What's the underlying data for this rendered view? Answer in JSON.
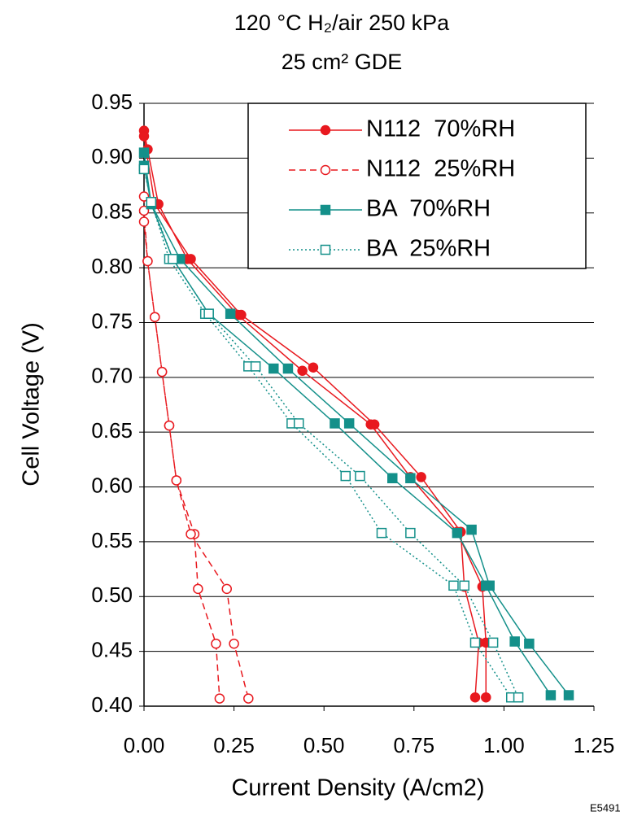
{
  "chart_data": {
    "type": "line",
    "title": [
      "120 °C  H₂/air  250 kPa",
      "25 cm² GDE"
    ],
    "x_label": "Current Density (A/cm2)",
    "y_label": "Cell Voltage (V)",
    "figure_id": "E5491",
    "xlim": [
      0,
      1.25
    ],
    "ylim": [
      0.4,
      0.95
    ],
    "xticks": [
      {
        "value": 0,
        "label": "0.00"
      },
      {
        "value": 0.25,
        "label": "0.25"
      },
      {
        "value": 0.5,
        "label": "0.50"
      },
      {
        "value": 0.75,
        "label": "0.75"
      },
      {
        "value": 1,
        "label": "1.00"
      },
      {
        "value": 1.25,
        "label": "1.25"
      }
    ],
    "yticks": [
      {
        "value": 0.4,
        "label": "0.40"
      },
      {
        "value": 0.45,
        "label": "0.45"
      },
      {
        "value": 0.5,
        "label": "0.50"
      },
      {
        "value": 0.55,
        "label": "0.55"
      },
      {
        "value": 0.6,
        "label": "0.60"
      },
      {
        "value": 0.65,
        "label": "0.65"
      },
      {
        "value": 0.7,
        "label": "0.70"
      },
      {
        "value": 0.75,
        "label": "0.75"
      },
      {
        "value": 0.8,
        "label": "0.80"
      },
      {
        "value": 0.85,
        "label": "0.85"
      },
      {
        "value": 0.9,
        "label": "0.90"
      },
      {
        "value": 0.95,
        "label": "0.95"
      }
    ],
    "grid": true,
    "legend": "top-right",
    "series": [
      {
        "name": "N112  70%RH",
        "color": "#e8191f",
        "marker": "circle",
        "filled": true,
        "dash": "solid",
        "x": [
          0,
          0.01,
          0.04,
          0.12,
          0.26,
          0.44,
          0.63,
          0.74,
          0.87,
          0.94,
          0.95,
          0.95,
          null,
          0,
          0.03,
          0.13,
          0.27,
          0.47,
          0.64,
          0.77,
          0.88,
          0.89,
          0.93,
          0.92
        ],
        "values": [
          0.925,
          0.908,
          0.858,
          0.808,
          0.757,
          0.706,
          0.657,
          0.609,
          0.559,
          0.509,
          0.458,
          0.408,
          null,
          0.92,
          0.858,
          0.808,
          0.757,
          0.709,
          0.657,
          0.609,
          0.559,
          0.509,
          0.458,
          0.408
        ]
      },
      {
        "name": "N112  25%RH",
        "color": "#e8191f",
        "marker": "circle",
        "filled": false,
        "dash": "dashed",
        "x": [
          0,
          0,
          0.01,
          0.03,
          0.05,
          0.07,
          0.09,
          0.14,
          0.15,
          0.2,
          0.21,
          null,
          0,
          0.01,
          0.03,
          0.05,
          0.07,
          0.09,
          0.13,
          0.23,
          0.25,
          0.29
        ],
        "values": [
          0.865,
          0.842,
          0.806,
          0.755,
          0.705,
          0.656,
          0.606,
          0.557,
          0.507,
          0.457,
          0.407,
          null,
          0.852,
          0.806,
          0.755,
          0.705,
          0.656,
          0.606,
          0.557,
          0.507,
          0.457,
          0.407
        ]
      },
      {
        "name": "BA  70%RH",
        "color": "#14908a",
        "marker": "square",
        "filled": true,
        "dash": "solid",
        "x": [
          0,
          0.02,
          0.08,
          0.18,
          0.36,
          0.53,
          0.69,
          0.87,
          0.95,
          1.03,
          1.13,
          null,
          0,
          0.02,
          0.1,
          0.24,
          0.4,
          0.57,
          0.74,
          0.91,
          0.96,
          1.07,
          1.18
        ],
        "values": [
          0.905,
          0.858,
          0.808,
          0.758,
          0.708,
          0.658,
          0.608,
          0.558,
          0.51,
          0.459,
          0.41,
          null,
          0.893,
          0.858,
          0.808,
          0.758,
          0.708,
          0.658,
          0.608,
          0.561,
          0.51,
          0.457,
          0.41
        ]
      },
      {
        "name": "BA  25%RH",
        "color": "#14908a",
        "marker": "square",
        "filled": false,
        "dash": "dotted",
        "x": [
          0,
          0.02,
          0.07,
          0.17,
          0.29,
          0.41,
          0.56,
          0.66,
          0.86,
          0.92,
          1.02,
          null,
          0,
          0.02,
          0.08,
          0.18,
          0.31,
          0.43,
          0.6,
          0.74,
          0.89,
          0.97,
          1.04
        ],
        "values": [
          0.89,
          0.86,
          0.808,
          0.758,
          0.71,
          0.658,
          0.61,
          0.558,
          0.51,
          0.458,
          0.408,
          null,
          0.89,
          0.86,
          0.808,
          0.758,
          0.71,
          0.658,
          0.61,
          0.558,
          0.51,
          0.458,
          0.408
        ]
      }
    ]
  }
}
